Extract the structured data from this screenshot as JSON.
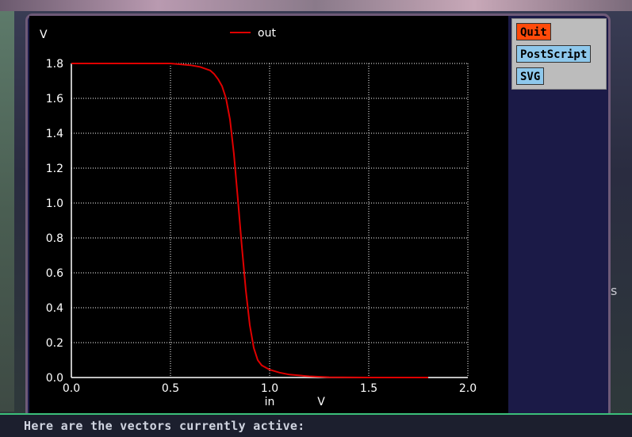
{
  "terminal": {
    "line": "Here are the vectors currently active:"
  },
  "background": {
    "stray_text": "s"
  },
  "buttons": {
    "quit": "Quit",
    "postscript": "PostScript",
    "svg": "SVG"
  },
  "colors": {
    "plot_background": "#000000",
    "trace": "#e00000",
    "grid": "#ffffff",
    "quit_button": "#ff4a0a",
    "export_button": "#8ec8ec",
    "window_background": "#1b1a47"
  },
  "chart_data": {
    "type": "line",
    "title": "",
    "xlabel": "in",
    "xunit": "V",
    "yunit": "V",
    "xlim": [
      0.0,
      2.0
    ],
    "ylim": [
      0.0,
      1.8
    ],
    "xticks": [
      "0.0",
      "0.5",
      "1.0",
      "1.5",
      "2.0"
    ],
    "yticks": [
      "0.0",
      "0.2",
      "0.4",
      "0.6",
      "0.8",
      "1.0",
      "1.2",
      "1.4",
      "1.6",
      "1.8"
    ],
    "grid": true,
    "legend_position": "top-center",
    "series": [
      {
        "name": "out",
        "x": [
          0.0,
          0.5,
          0.6,
          0.65,
          0.7,
          0.72,
          0.74,
          0.76,
          0.78,
          0.8,
          0.82,
          0.84,
          0.86,
          0.88,
          0.9,
          0.92,
          0.94,
          0.96,
          1.0,
          1.05,
          1.1,
          1.2,
          1.3,
          1.5,
          1.8
        ],
        "y": [
          1.8,
          1.8,
          1.79,
          1.78,
          1.76,
          1.74,
          1.71,
          1.67,
          1.6,
          1.48,
          1.28,
          1.02,
          0.75,
          0.5,
          0.3,
          0.17,
          0.1,
          0.07,
          0.045,
          0.028,
          0.017,
          0.007,
          0.002,
          0.0,
          0.0
        ]
      }
    ]
  }
}
